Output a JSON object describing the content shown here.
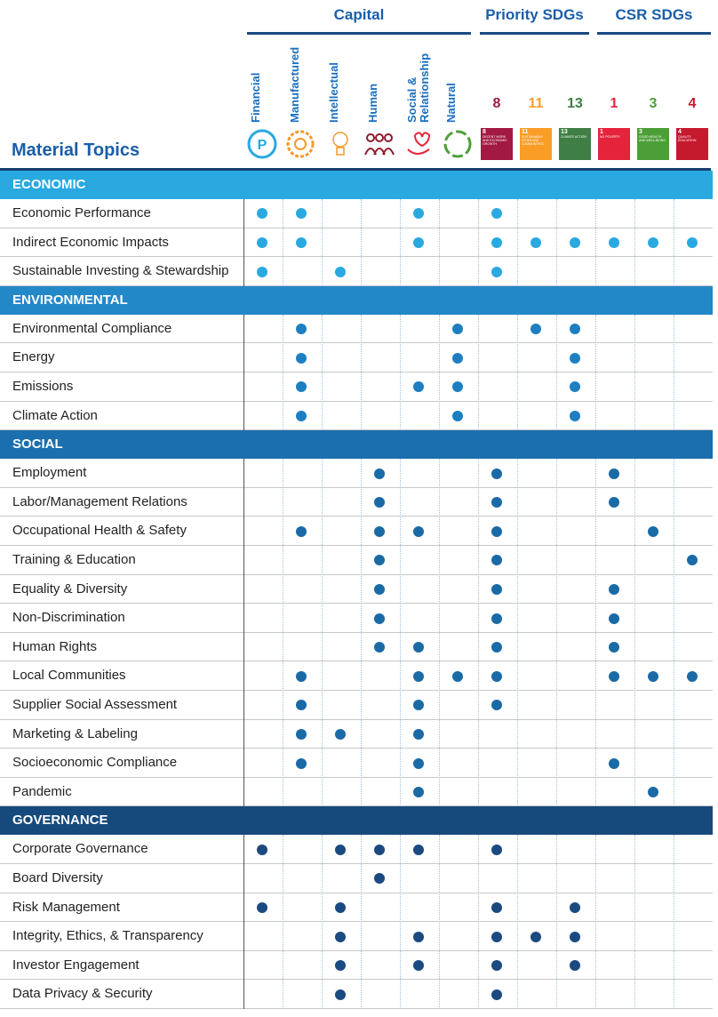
{
  "header": {
    "groups": [
      "Capital",
      "Priority SDGs",
      "CSR SDGs"
    ],
    "topics_title": "Material Topics",
    "capital": [
      "Financial",
      "Manufactured",
      "Intellectual",
      "Human",
      "Social & Relationship",
      "Natural"
    ],
    "sdgs": [
      {
        "number": "8",
        "caption": "DECENT WORK AND ECONOMIC GROWTH",
        "color": "#a21942"
      },
      {
        "number": "11",
        "caption": "SUSTAINABLE CITIES AND COMMUNITIES",
        "color": "#f99d26"
      },
      {
        "number": "13",
        "caption": "CLIMATE ACTION",
        "color": "#3f7e44"
      },
      {
        "number": "1",
        "caption": "NO POVERTY",
        "color": "#e5243b"
      },
      {
        "number": "3",
        "caption": "GOOD HEALTH AND WELL-BEING",
        "color": "#4c9f38"
      },
      {
        "number": "4",
        "caption": "QUALITY EDUCATION",
        "color": "#c5192d"
      }
    ]
  },
  "sections": [
    {
      "title": "ECONOMIC",
      "color": "#29a9e0",
      "dot": "#29a9e0",
      "rows": [
        {
          "topic": "Economic Performance",
          "dots": [
            1,
            1,
            0,
            0,
            1,
            0,
            1,
            0,
            0,
            0,
            0,
            0
          ]
        },
        {
          "topic": "Indirect Economic Impacts",
          "dots": [
            1,
            1,
            0,
            0,
            1,
            0,
            1,
            1,
            1,
            1,
            1,
            1
          ]
        },
        {
          "topic": "Sustainable Investing & Stewardship",
          "dots": [
            1,
            0,
            1,
            0,
            0,
            0,
            1,
            0,
            0,
            0,
            0,
            0
          ]
        }
      ]
    },
    {
      "title": "ENVIRONMENTAL",
      "color": "#2388c8",
      "dot": "#1d7fc1",
      "rows": [
        {
          "topic": "Environmental Compliance",
          "dots": [
            0,
            1,
            0,
            0,
            0,
            1,
            0,
            1,
            1,
            0,
            0,
            0
          ]
        },
        {
          "topic": "Energy",
          "dots": [
            0,
            1,
            0,
            0,
            0,
            1,
            0,
            0,
            1,
            0,
            0,
            0
          ]
        },
        {
          "topic": "Emissions",
          "dots": [
            0,
            1,
            0,
            0,
            1,
            1,
            0,
            0,
            1,
            0,
            0,
            0
          ]
        },
        {
          "topic": "Climate Action",
          "dots": [
            0,
            1,
            0,
            0,
            0,
            1,
            0,
            0,
            1,
            0,
            0,
            0
          ]
        }
      ]
    },
    {
      "title": "SOCIAL",
      "color": "#1b6fae",
      "dot": "#1a6aa6",
      "rows": [
        {
          "topic": "Employment",
          "dots": [
            0,
            0,
            0,
            1,
            0,
            0,
            1,
            0,
            0,
            1,
            0,
            0
          ]
        },
        {
          "topic": "Labor/Management Relations",
          "dots": [
            0,
            0,
            0,
            1,
            0,
            0,
            1,
            0,
            0,
            1,
            0,
            0
          ]
        },
        {
          "topic": "Occupational Health & Safety",
          "dots": [
            0,
            1,
            0,
            1,
            1,
            0,
            1,
            0,
            0,
            0,
            1,
            0
          ]
        },
        {
          "topic": "Training & Education",
          "dots": [
            0,
            0,
            0,
            1,
            0,
            0,
            1,
            0,
            0,
            0,
            0,
            1
          ]
        },
        {
          "topic": "Equality & Diversity",
          "dots": [
            0,
            0,
            0,
            1,
            0,
            0,
            1,
            0,
            0,
            1,
            0,
            0
          ]
        },
        {
          "topic": "Non-Discrimination",
          "dots": [
            0,
            0,
            0,
            1,
            0,
            0,
            1,
            0,
            0,
            1,
            0,
            0
          ]
        },
        {
          "topic": "Human Rights",
          "dots": [
            0,
            0,
            0,
            1,
            1,
            0,
            1,
            0,
            0,
            1,
            0,
            0
          ]
        },
        {
          "topic": "Local Communities",
          "dots": [
            0,
            1,
            0,
            0,
            1,
            1,
            1,
            0,
            0,
            1,
            1,
            1
          ]
        },
        {
          "topic": "Supplier Social Assessment",
          "dots": [
            0,
            1,
            0,
            0,
            1,
            0,
            1,
            0,
            0,
            0,
            0,
            0
          ]
        },
        {
          "topic": "Marketing & Labeling",
          "dots": [
            0,
            1,
            1,
            0,
            1,
            0,
            0,
            0,
            0,
            0,
            0,
            0
          ]
        },
        {
          "topic": "Socioeconomic Compliance",
          "dots": [
            0,
            1,
            0,
            0,
            1,
            0,
            0,
            0,
            0,
            1,
            0,
            0
          ]
        },
        {
          "topic": "Pandemic",
          "dots": [
            0,
            0,
            0,
            0,
            1,
            0,
            0,
            0,
            0,
            0,
            1,
            0
          ]
        }
      ]
    },
    {
      "title": "GOVERNANCE",
      "color": "#174a7c",
      "dot": "#1a4a80",
      "rows": [
        {
          "topic": "Corporate Governance",
          "dots": [
            1,
            0,
            1,
            1,
            1,
            0,
            1,
            0,
            0,
            0,
            0,
            0
          ]
        },
        {
          "topic": "Board Diversity",
          "dots": [
            0,
            0,
            0,
            1,
            0,
            0,
            0,
            0,
            0,
            0,
            0,
            0
          ]
        },
        {
          "topic": "Risk Management",
          "dots": [
            1,
            0,
            1,
            0,
            0,
            0,
            1,
            0,
            1,
            0,
            0,
            0
          ]
        },
        {
          "topic": "Integrity, Ethics, & Transparency",
          "dots": [
            0,
            0,
            1,
            0,
            1,
            0,
            1,
            1,
            1,
            0,
            0,
            0
          ]
        },
        {
          "topic": "Investor Engagement",
          "dots": [
            0,
            0,
            1,
            0,
            1,
            0,
            1,
            0,
            1,
            0,
            0,
            0
          ]
        },
        {
          "topic": "Data Privacy & Security",
          "dots": [
            0,
            0,
            1,
            0,
            0,
            0,
            1,
            0,
            0,
            0,
            0,
            0
          ]
        }
      ]
    }
  ]
}
